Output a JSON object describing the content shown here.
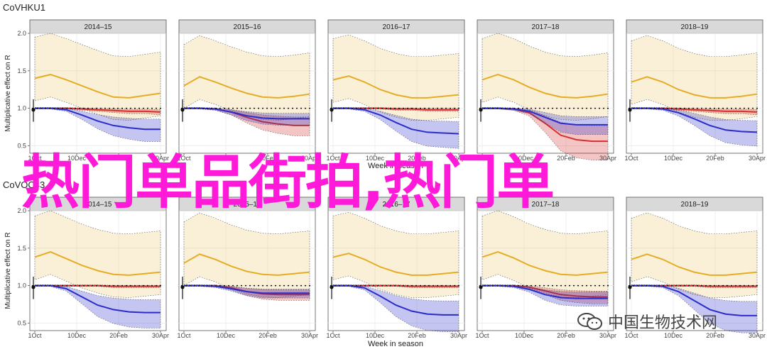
{
  "chart_data": [
    {
      "type": "line",
      "title": "CoVHKU1",
      "ylabel": "Multiplicative effect on R",
      "xlabel": "Week in season",
      "ylim": [
        0.4,
        2.0
      ],
      "yticks": [
        "0.5",
        "1.0",
        "1.5",
        "2.0"
      ],
      "x_tick_labels": [
        "1Oct",
        "10Dec",
        "20Feb",
        "30Apr"
      ],
      "panels": [
        "2014–15",
        "2015–16",
        "2016–17",
        "2017–18",
        "2018–19"
      ],
      "series_colors": {
        "gold": "#e6ac24",
        "red": "#d72e2e",
        "blue": "#2b2dc9"
      },
      "series": [
        {
          "color": "gold",
          "values": [
            [
              1.4,
              1.45,
              1.38,
              1.3,
              1.22,
              1.15,
              1.14,
              1.17,
              1.2
            ],
            [
              1.3,
              1.42,
              1.35,
              1.27,
              1.2,
              1.15,
              1.14,
              1.16,
              1.19
            ],
            [
              1.38,
              1.43,
              1.35,
              1.25,
              1.18,
              1.14,
              1.14,
              1.16,
              1.18
            ],
            [
              1.38,
              1.45,
              1.38,
              1.28,
              1.2,
              1.15,
              1.14,
              1.16,
              1.19
            ],
            [
              1.35,
              1.42,
              1.35,
              1.25,
              1.18,
              1.14,
              1.14,
              1.16,
              1.19
            ]
          ]
        },
        {
          "color": "red",
          "values": [
            [
              1.0,
              1.0,
              1.0,
              0.99,
              0.98,
              0.97,
              0.96,
              0.96,
              0.95
            ],
            [
              1.0,
              1.0,
              0.99,
              0.95,
              0.88,
              0.82,
              0.79,
              0.77,
              0.77
            ],
            [
              1.0,
              1.0,
              1.0,
              1.0,
              0.99,
              0.99,
              0.98,
              0.98,
              0.98
            ],
            [
              1.0,
              1.0,
              0.99,
              0.94,
              0.8,
              0.64,
              0.58,
              0.56,
              0.56
            ],
            [
              1.0,
              1.0,
              1.0,
              0.99,
              0.98,
              0.97,
              0.96,
              0.96,
              0.95
            ]
          ]
        },
        {
          "color": "blue",
          "values": [
            [
              1.0,
              1.0,
              0.98,
              0.91,
              0.83,
              0.77,
              0.74,
              0.72,
              0.72
            ],
            [
              1.0,
              1.0,
              0.99,
              0.95,
              0.9,
              0.87,
              0.86,
              0.86,
              0.86
            ],
            [
              1.0,
              1.0,
              0.98,
              0.91,
              0.81,
              0.72,
              0.68,
              0.67,
              0.66
            ],
            [
              1.0,
              1.0,
              0.99,
              0.96,
              0.88,
              0.8,
              0.78,
              0.78,
              0.78
            ],
            [
              1.0,
              1.0,
              0.99,
              0.94,
              0.86,
              0.77,
              0.71,
              0.69,
              0.68
            ]
          ]
        }
      ]
    },
    {
      "type": "line",
      "title": "CoVOC43",
      "ylabel": "Multiplicative effect on R",
      "xlabel": "Week in season",
      "ylim": [
        0.4,
        2.0
      ],
      "yticks": [
        "0.5",
        "1.0",
        "1.5",
        "2.0"
      ],
      "x_tick_labels": [
        "1Oct",
        "10Dec",
        "20Feb",
        "30Apr"
      ],
      "panels": [
        "2014–15",
        "2015–16",
        "2016–17",
        "2017–18",
        "2018–19"
      ],
      "series_colors": {
        "gold": "#e6ac24",
        "red": "#d72e2e",
        "blue": "#2b2dc9"
      },
      "series": [
        {
          "color": "gold",
          "values": [
            [
              1.38,
              1.45,
              1.36,
              1.27,
              1.2,
              1.15,
              1.14,
              1.16,
              1.18
            ],
            [
              1.3,
              1.42,
              1.35,
              1.26,
              1.19,
              1.15,
              1.14,
              1.16,
              1.18
            ],
            [
              1.38,
              1.43,
              1.35,
              1.25,
              1.18,
              1.14,
              1.14,
              1.16,
              1.18
            ],
            [
              1.38,
              1.45,
              1.37,
              1.27,
              1.2,
              1.15,
              1.14,
              1.16,
              1.18
            ],
            [
              1.35,
              1.42,
              1.35,
              1.25,
              1.18,
              1.14,
              1.14,
              1.16,
              1.18
            ]
          ]
        },
        {
          "color": "red",
          "values": [
            [
              1.0,
              1.0,
              1.0,
              1.0,
              1.0,
              0.99,
              0.99,
              0.99,
              0.99
            ],
            [
              1.0,
              1.0,
              1.0,
              0.97,
              0.92,
              0.89,
              0.88,
              0.88,
              0.88
            ],
            [
              1.0,
              1.0,
              1.0,
              1.0,
              1.0,
              0.99,
              0.99,
              0.99,
              0.99
            ],
            [
              1.0,
              1.0,
              1.0,
              0.98,
              0.93,
              0.88,
              0.86,
              0.85,
              0.85
            ],
            [
              1.0,
              1.0,
              1.0,
              1.0,
              1.0,
              0.99,
              0.99,
              0.99,
              0.99
            ]
          ]
        },
        {
          "color": "blue",
          "values": [
            [
              1.0,
              1.0,
              0.96,
              0.85,
              0.74,
              0.68,
              0.65,
              0.64,
              0.64
            ],
            [
              1.0,
              1.0,
              0.99,
              0.96,
              0.92,
              0.9,
              0.9,
              0.9,
              0.9
            ],
            [
              1.0,
              1.0,
              0.97,
              0.86,
              0.74,
              0.66,
              0.62,
              0.61,
              0.61
            ],
            [
              1.0,
              1.0,
              0.99,
              0.95,
              0.88,
              0.84,
              0.83,
              0.83,
              0.83
            ],
            [
              1.0,
              1.0,
              0.99,
              0.92,
              0.8,
              0.68,
              0.62,
              0.6,
              0.6
            ]
          ]
        }
      ]
    }
  ],
  "overlay_text": "热门单品街拍,热门单",
  "watermark": "中国生物技术网"
}
